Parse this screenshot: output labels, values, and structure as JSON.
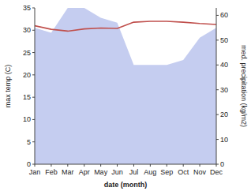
{
  "chart_data": {
    "type": "line",
    "xlabel": "date (month)",
    "ylabel": "max temp (C)",
    "y2label": "med. precipitation (kg/m2)",
    "categories": [
      "Jan",
      "Feb",
      "Mar",
      "Apr",
      "May",
      "Jun",
      "Jul",
      "Aug",
      "Sep",
      "Oct",
      "Nov",
      "Dec"
    ],
    "series": [
      {
        "type": "area",
        "axis": "y2",
        "color": "#c5cdf0",
        "values": [
          55,
          53,
          63,
          63,
          59,
          57,
          40,
          40,
          40,
          42,
          51,
          55
        ]
      },
      {
        "type": "line",
        "color": "#c0504d",
        "values": [
          31.0,
          30.2,
          29.8,
          30.3,
          30.5,
          30.4,
          31.8,
          32.0,
          32.0,
          31.8,
          31.5,
          31.3
        ]
      }
    ],
    "ylim": [
      0,
      35
    ],
    "yticks": [
      0,
      5,
      10,
      15,
      20,
      25,
      30,
      35
    ],
    "y2lim": [
      0,
      63
    ],
    "y2ticks": [
      0,
      10,
      20,
      30,
      40,
      50,
      60
    ]
  }
}
